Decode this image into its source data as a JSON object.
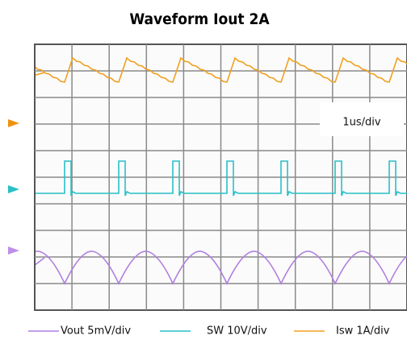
{
  "header": {
    "title": "Waveform Iout 2A"
  },
  "scale_label": "1us/div",
  "legend": [
    {
      "name": "Vout 5mV/div"
    },
    {
      "name": "SW 10V/div"
    },
    {
      "name": "Isw 1A/div"
    }
  ]
}
